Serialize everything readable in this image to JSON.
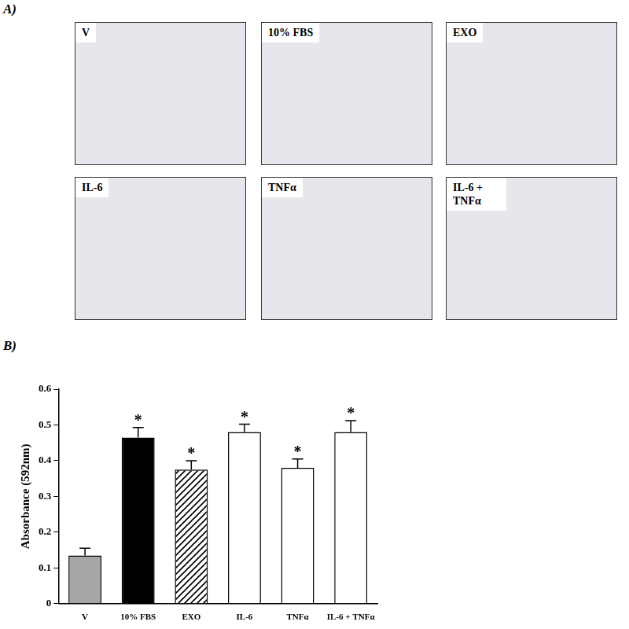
{
  "panel_a": {
    "label": "A)",
    "images": [
      "V",
      "10% FBS",
      "EXO",
      "IL-6",
      "TNFα",
      "IL-6 + TNFα"
    ]
  },
  "chart_data": {
    "panel_label": "B)",
    "type": "bar",
    "y_label": "Absorbance (592nm)",
    "categories": [
      "V",
      "10% FBS",
      "EXO",
      "IL-6",
      "TNFα",
      "IL-6 + TNFα"
    ],
    "values": [
      0.135,
      0.465,
      0.375,
      0.48,
      0.38,
      0.48
    ],
    "errors": [
      0.02,
      0.028,
      0.025,
      0.022,
      0.025,
      0.032
    ],
    "annotations": [
      null,
      "*",
      "*",
      "*",
      "*",
      "*"
    ],
    "colors": [
      "#a6a6a6",
      "#000000",
      "#ffffff",
      "#ffffff",
      "#ffffff",
      "#ffffff"
    ],
    "ylim": [
      0,
      0.6
    ],
    "yticks": [
      0,
      0.1,
      0.2,
      0.3,
      0.4,
      0.5,
      0.6
    ],
    "grid": false
  }
}
